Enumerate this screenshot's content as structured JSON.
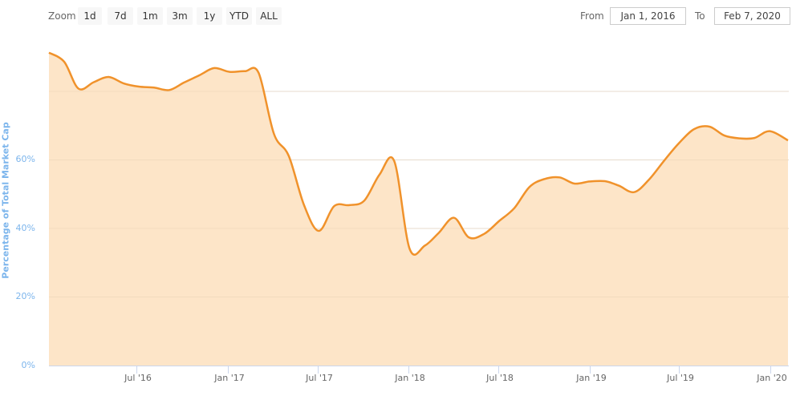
{
  "toolbar": {
    "zoom_label": "Zoom",
    "zoom_buttons": [
      "1d",
      "7d",
      "1m",
      "3m",
      "1y",
      "YTD",
      "ALL"
    ],
    "from_label": "From",
    "from_value": "Jan 1, 2016",
    "to_label": "To",
    "to_value": "Feb 7, 2020"
  },
  "colors": {
    "line": "#f0922b",
    "fill": "#fde5c8",
    "grid": "#e6e6e6",
    "axis_label": "#7cb5ec"
  },
  "chart_data": {
    "type": "area",
    "title": "",
    "xlabel": "",
    "ylabel": "Percentage of Total Market Cap",
    "ylim": [
      0,
      100
    ],
    "y_ticks": [
      "0%",
      "20%",
      "40%",
      "60%"
    ],
    "x_ticks": [
      "Jul '16",
      "Jan '17",
      "Jul '17",
      "Jan '18",
      "Jul '18",
      "Jan '19",
      "Jul '19",
      "Jan '20"
    ],
    "grid": true,
    "legend": "none",
    "x_range": [
      "2016-01-01",
      "2020-02-07"
    ],
    "series": [
      {
        "name": "Percentage of Total Market Cap",
        "x": [
          "2016-01",
          "2016-02",
          "2016-03",
          "2016-04",
          "2016-05",
          "2016-06",
          "2016-07",
          "2016-08",
          "2016-09",
          "2016-10",
          "2016-11",
          "2016-12",
          "2017-01",
          "2017-02",
          "2017-03",
          "2017-04",
          "2017-05",
          "2017-06",
          "2017-07",
          "2017-08",
          "2017-09",
          "2017-10",
          "2017-11",
          "2017-12",
          "2018-01",
          "2018-02",
          "2018-03",
          "2018-04",
          "2018-05",
          "2018-06",
          "2018-07",
          "2018-08",
          "2018-09",
          "2018-10",
          "2018-11",
          "2018-12",
          "2019-01",
          "2019-02",
          "2019-03",
          "2019-04",
          "2019-05",
          "2019-06",
          "2019-07",
          "2019-08",
          "2019-09",
          "2019-10",
          "2019-11",
          "2019-12",
          "2020-01",
          "2020-02"
        ],
        "values": [
          91.3,
          88.6,
          80.8,
          82.7,
          84.2,
          82.3,
          81.4,
          81.1,
          80.4,
          82.6,
          84.7,
          86.8,
          85.7,
          85.9,
          85.4,
          67.6,
          61.2,
          46.8,
          39.3,
          46.5,
          46.8,
          48.1,
          55.7,
          59.6,
          34.1,
          35.0,
          38.7,
          43.1,
          37.4,
          38.4,
          42.1,
          45.9,
          52.1,
          54.4,
          54.9,
          53.1,
          53.7,
          53.8,
          52.5,
          50.6,
          54.2,
          59.8,
          64.9,
          69.0,
          69.7,
          67.1,
          66.3,
          66.4,
          68.4,
          65.7
        ]
      }
    ]
  }
}
